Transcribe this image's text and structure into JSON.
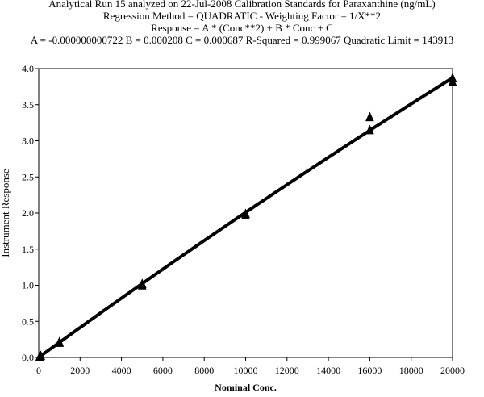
{
  "chart_data": {
    "type": "scatter",
    "title_lines": [
      "Analytical Run 15 analyzed on 22-Jul-2008 Calibration Standards for Paraxanthine (ng/mL)",
      "Regression Method = QUADRATIC - Weighting Factor = 1/X**2",
      "Response = A * (Conc**2) + B * Conc + C",
      "A = -0.000000000722 B = 0.000208 C = 0.000687 R-Squared = 0.999067  Quadratic Limit = 143913"
    ],
    "xlabel": "Nominal Conc.",
    "ylabel": "Instrument Response",
    "xlim": [
      0,
      20000
    ],
    "ylim": [
      0,
      4.0
    ],
    "x_ticks": [
      "0",
      "2000",
      "4000",
      "6000",
      "8000",
      "10000",
      "12000",
      "14000",
      "16000",
      "18000",
      "20000"
    ],
    "y_ticks": [
      "0.0",
      "0.5",
      "1.0",
      "1.5",
      "2.0",
      "2.5",
      "3.0",
      "3.5",
      "4.0"
    ],
    "grid": false,
    "fit": {
      "model": "quadratic",
      "A": -7.22e-10,
      "B": 0.000208,
      "C": 0.000687
    },
    "series": [
      {
        "marker": "triangle",
        "x": [
          50,
          50,
          100,
          100,
          1000,
          1000,
          5000,
          5000,
          10000,
          10000,
          16000,
          16000,
          20000,
          20000
        ],
        "y": [
          0.011,
          0.013,
          0.022,
          0.025,
          0.205,
          0.215,
          1.0,
          1.02,
          1.97,
          1.99,
          3.15,
          3.33,
          3.82,
          3.87
        ]
      }
    ]
  }
}
